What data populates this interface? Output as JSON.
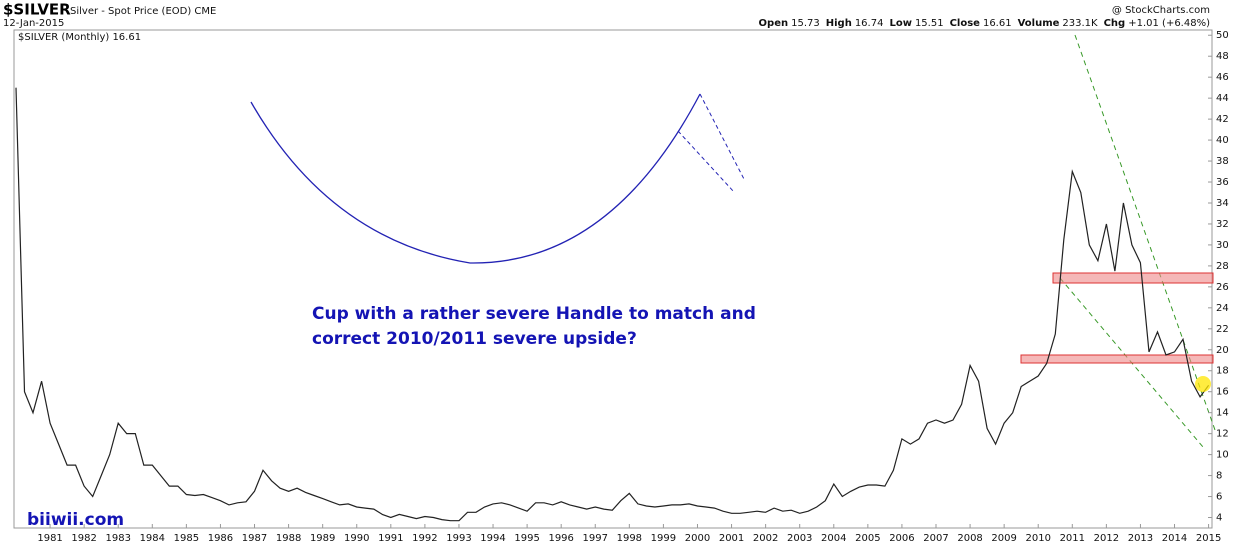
{
  "chart_data": {
    "type": "line",
    "symbol": "$SILVER",
    "subtitle": "Silver - Spot Price (EOD) CME",
    "date": "12-Jan-2015",
    "source": "@ StockCharts.com",
    "quote": [
      {
        "label": "Open",
        "value": 15.73
      },
      {
        "label": "High",
        "value": 16.74
      },
      {
        "label": "Low",
        "value": 15.51
      },
      {
        "label": "Close",
        "value": 16.61
      },
      {
        "label": "Volume",
        "value": "233.1K"
      },
      {
        "label": "Chg",
        "value": "+1.01 (+6.48%)"
      }
    ],
    "legend": "$SILVER (Monthly) 16.61",
    "annotation": [
      "Cup with a rather severe Handle to match and",
      "correct 2010/2011 severe upside?"
    ],
    "watermark": "biiwii.com",
    "grid": false,
    "xlim": [
      1980,
      2015.1
    ],
    "ylim": [
      3,
      50.5
    ],
    "xticks": [
      1981,
      1982,
      1983,
      1984,
      1985,
      1986,
      1987,
      1988,
      1989,
      1990,
      1991,
      1992,
      1993,
      1994,
      1995,
      1996,
      1997,
      1998,
      1999,
      2000,
      2001,
      2002,
      2003,
      2004,
      2005,
      2006,
      2007,
      2008,
      2009,
      2010,
      2011,
      2012,
      2013,
      2014,
      2015
    ],
    "yticks": [
      4,
      6,
      8,
      10,
      12,
      14,
      16,
      18,
      20,
      22,
      24,
      26,
      28,
      30,
      32,
      34,
      36,
      38,
      40,
      42,
      44,
      46,
      48,
      50
    ],
    "series": [
      {
        "name": "$SILVER",
        "color": "#222222",
        "x": [
          1980,
          1980.25,
          1980.5,
          1980.75,
          1981,
          1981.25,
          1981.5,
          1981.75,
          1982,
          1982.25,
          1982.5,
          1982.75,
          1983,
          1983.25,
          1983.5,
          1983.75,
          1984,
          1984.25,
          1984.5,
          1984.75,
          1985,
          1985.25,
          1985.5,
          1985.75,
          1986,
          1986.25,
          1986.5,
          1986.75,
          1987,
          1987.25,
          1987.5,
          1987.75,
          1988,
          1988.25,
          1988.5,
          1988.75,
          1989,
          1989.25,
          1989.5,
          1989.75,
          1990,
          1990.25,
          1990.5,
          1990.75,
          1991,
          1991.25,
          1991.5,
          1991.75,
          1992,
          1992.25,
          1992.5,
          1992.75,
          1993,
          1993.25,
          1993.5,
          1993.75,
          1994,
          1994.25,
          1994.5,
          1994.75,
          1995,
          1995.25,
          1995.5,
          1995.75,
          1996,
          1996.25,
          1996.5,
          1996.75,
          1997,
          1997.25,
          1997.5,
          1997.75,
          1998,
          1998.25,
          1998.5,
          1998.75,
          1999,
          1999.25,
          1999.5,
          1999.75,
          2000,
          2000.25,
          2000.5,
          2000.75,
          2001,
          2001.25,
          2001.5,
          2001.75,
          2002,
          2002.25,
          2002.5,
          2002.75,
          2003,
          2003.25,
          2003.5,
          2003.75,
          2004,
          2004.25,
          2004.5,
          2004.75,
          2005,
          2005.25,
          2005.5,
          2005.75,
          2006,
          2006.25,
          2006.5,
          2006.75,
          2007,
          2007.25,
          2007.5,
          2007.75,
          2008,
          2008.25,
          2008.5,
          2008.75,
          2009,
          2009.25,
          2009.5,
          2009.75,
          2010,
          2010.25,
          2010.5,
          2010.75,
          2011,
          2011.25,
          2011.5,
          2011.75,
          2012,
          2012.25,
          2012.5,
          2012.75,
          2013,
          2013.25,
          2013.5,
          2013.75,
          2014,
          2014.25,
          2014.5,
          2014.75,
          2015
        ],
        "values": [
          45,
          16,
          14,
          17,
          13,
          11,
          9,
          9,
          7,
          6,
          8,
          10,
          13,
          12,
          12,
          9,
          9,
          8,
          7,
          7,
          6.2,
          6.1,
          6.2,
          5.9,
          5.6,
          5.2,
          5.4,
          5.5,
          6.5,
          8.5,
          7.5,
          6.8,
          6.5,
          6.8,
          6.4,
          6.1,
          5.8,
          5.5,
          5.2,
          5.3,
          5.0,
          4.9,
          4.8,
          4.3,
          4.0,
          4.3,
          4.1,
          3.9,
          4.1,
          4.0,
          3.8,
          3.7,
          3.7,
          4.5,
          4.5,
          5.0,
          5.3,
          5.4,
          5.2,
          4.9,
          4.6,
          5.4,
          5.4,
          5.2,
          5.5,
          5.2,
          5.0,
          4.8,
          5.0,
          4.8,
          4.7,
          5.6,
          6.3,
          5.3,
          5.1,
          5.0,
          5.1,
          5.2,
          5.2,
          5.3,
          5.1,
          5.0,
          4.9,
          4.6,
          4.4,
          4.4,
          4.5,
          4.6,
          4.5,
          4.9,
          4.6,
          4.7,
          4.4,
          4.6,
          5.0,
          5.6,
          7.2,
          6.0,
          6.5,
          6.9,
          7.1,
          7.1,
          7.0,
          8.5,
          11.5,
          11.0,
          11.5,
          13.0,
          13.3,
          13.0,
          13.3,
          14.8,
          18.5,
          17.0,
          12.5,
          11.0,
          13.0,
          14.0,
          16.5,
          17.0,
          17.5,
          18.7,
          21.5,
          30.5,
          37.0,
          35.0,
          30.0,
          28.5,
          32.0,
          27.5,
          34.0,
          30.0,
          28.3,
          19.8,
          21.7,
          19.5,
          19.8,
          21.0,
          17.0,
          15.5,
          16.61
        ]
      }
    ]
  }
}
